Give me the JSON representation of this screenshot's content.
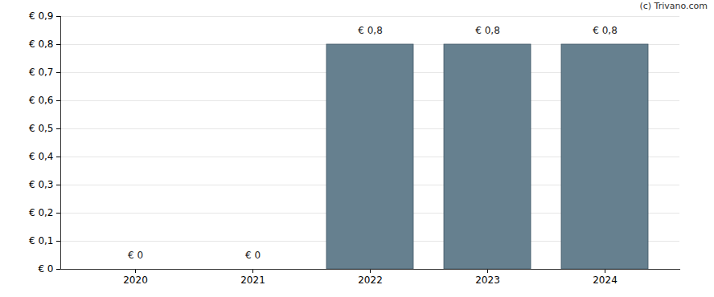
{
  "chart_data": {
    "type": "bar",
    "annotations": [
      "(c) Trivano.com"
    ],
    "categories": [
      "2020",
      "2021",
      "2022",
      "2023",
      "2024"
    ],
    "values": [
      0,
      0,
      0.8,
      0.8,
      0.8
    ],
    "value_labels": [
      "€ 0",
      "€ 0",
      "€ 0,8",
      "€ 0,8",
      "€ 0,8"
    ],
    "data_labels": true,
    "color": "#66808f",
    "ylim": [
      0,
      0.9
    ],
    "yticks": [
      {
        "value": 0,
        "label": "€ 0"
      },
      {
        "value": 0.1,
        "label": "€ 0,1"
      },
      {
        "value": 0.2,
        "label": "€ 0,2"
      },
      {
        "value": 0.3,
        "label": "€ 0,3"
      },
      {
        "value": 0.4,
        "label": "€ 0,4"
      },
      {
        "value": 0.5,
        "label": "€ 0,5"
      },
      {
        "value": 0.6,
        "label": "€ 0,6"
      },
      {
        "value": 0.7,
        "label": "€ 0,7"
      },
      {
        "value": 0.8,
        "label": "€ 0,8"
      },
      {
        "value": 0.9,
        "label": "€ 0,9"
      }
    ],
    "grid": true
  }
}
